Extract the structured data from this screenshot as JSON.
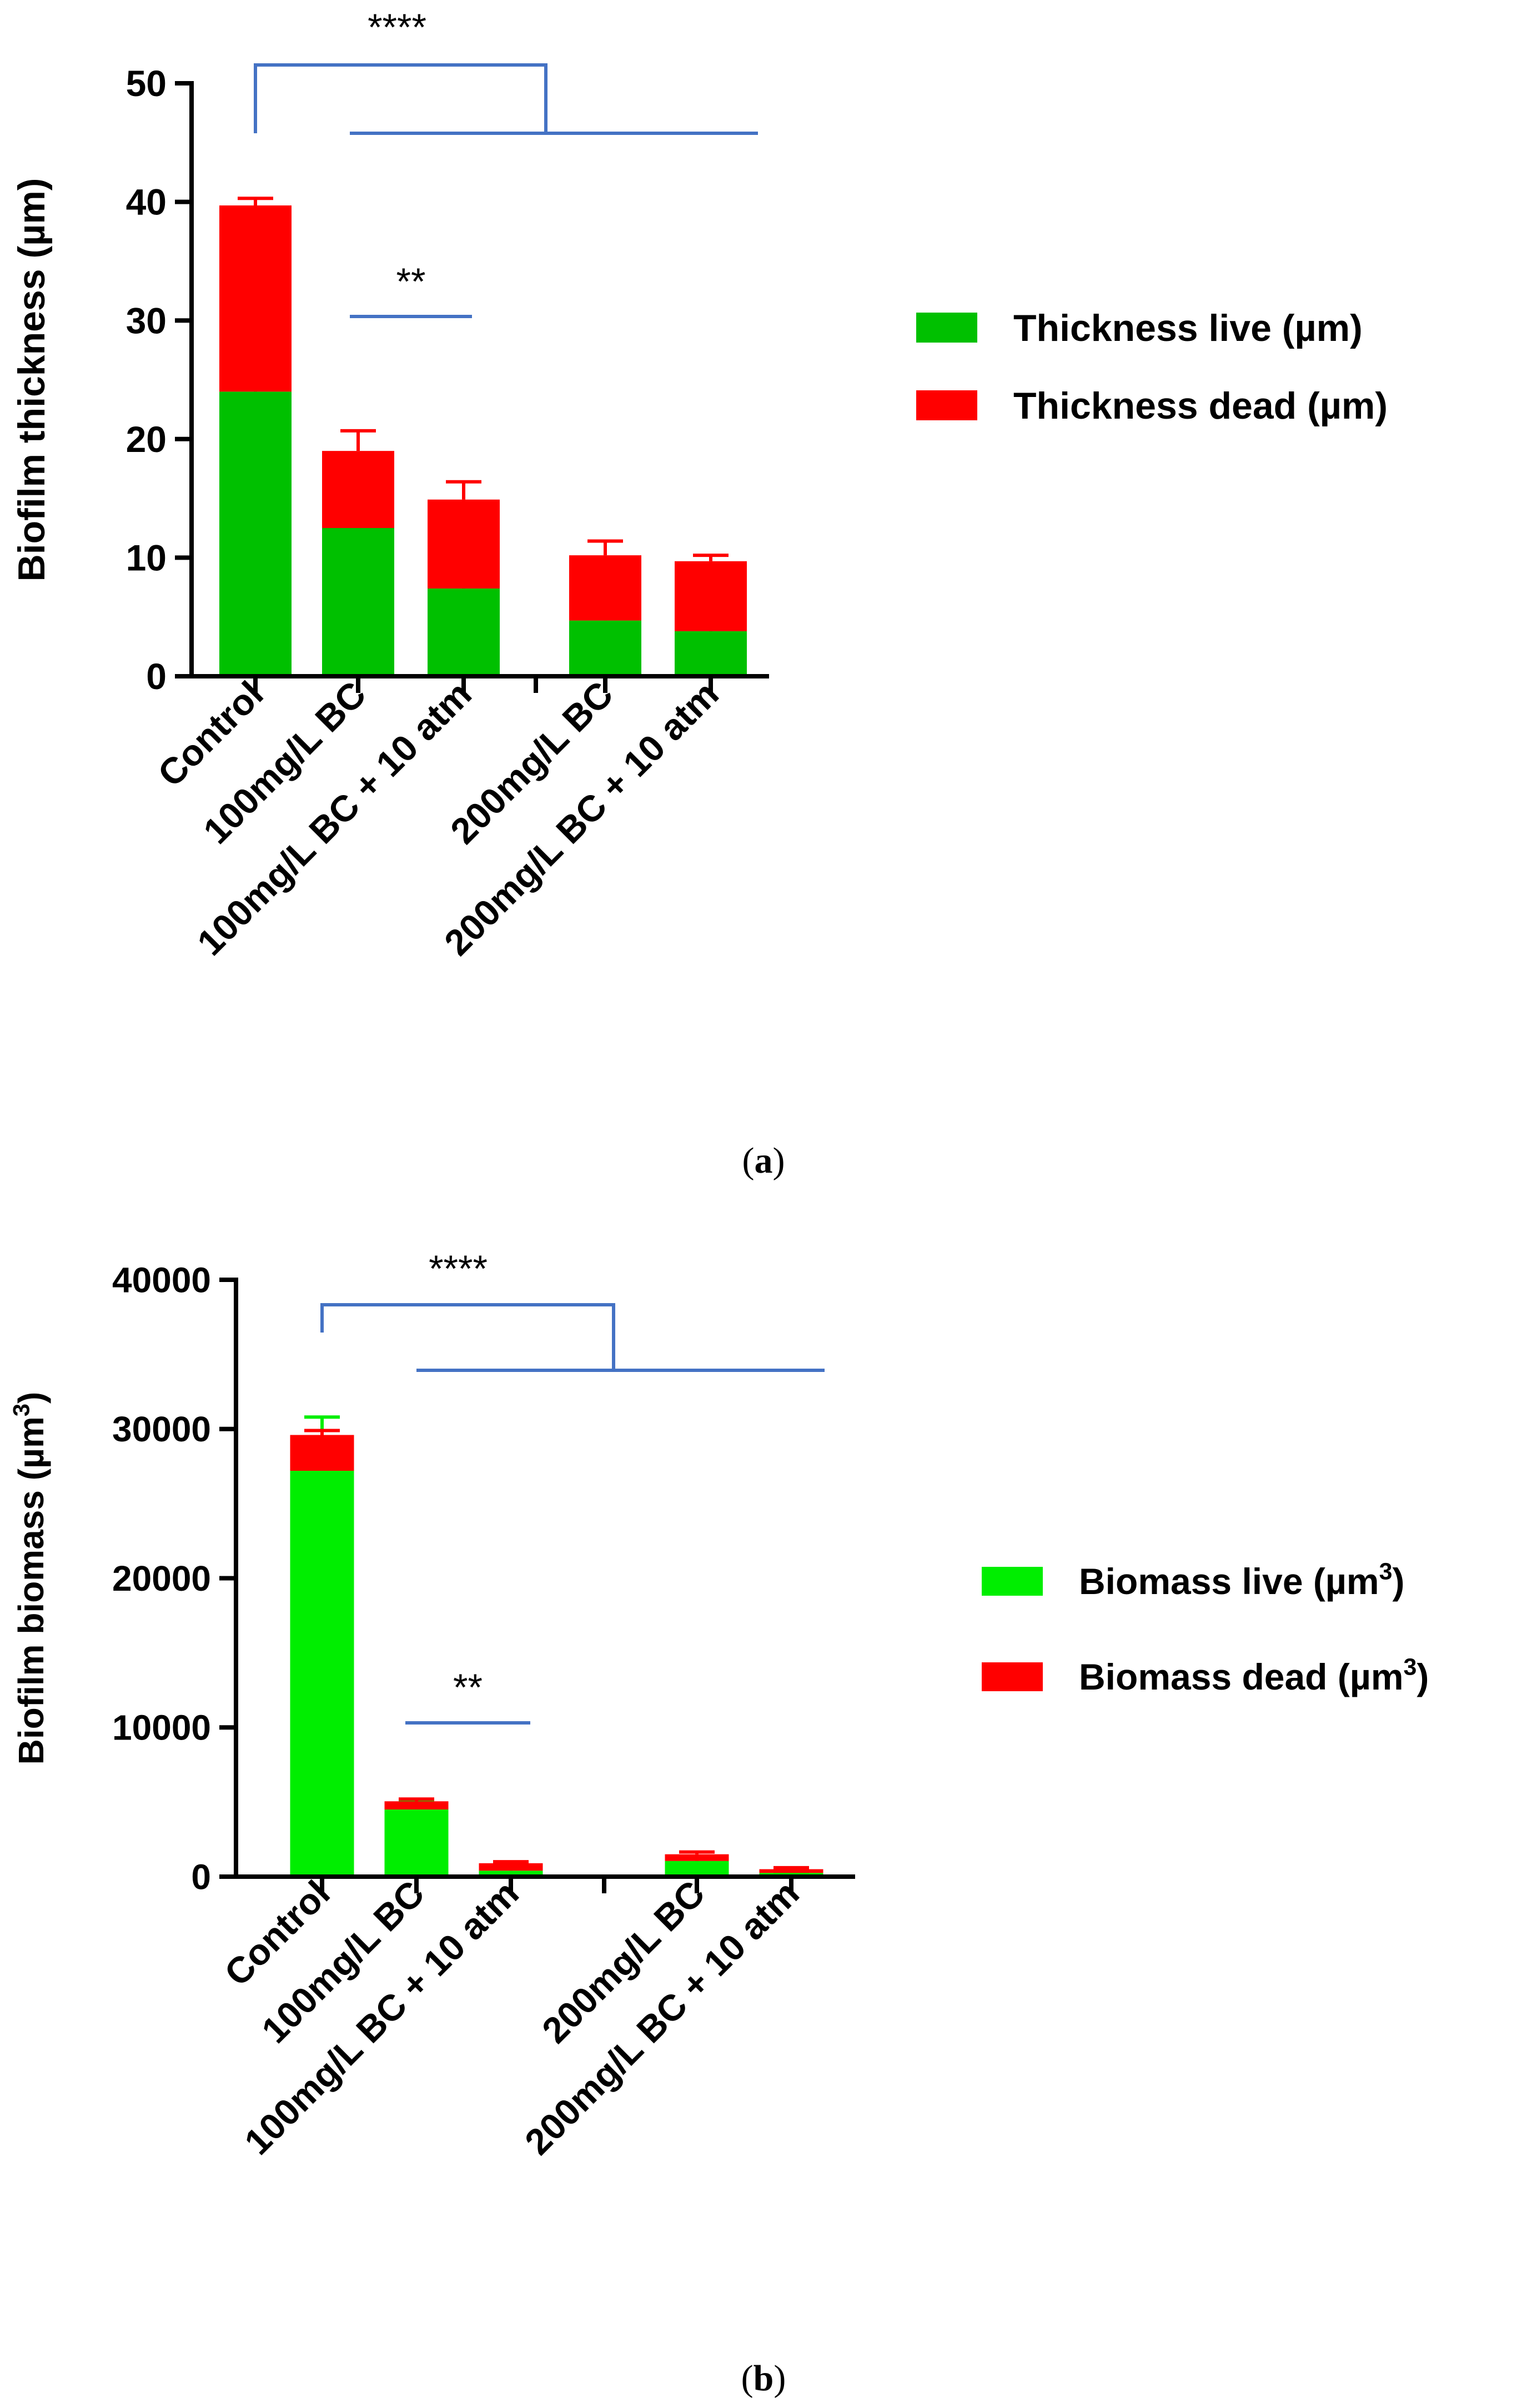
{
  "chart_data": [
    {
      "panel": "(a)",
      "panel_letter": "a",
      "type": "bar",
      "stacked": true,
      "ylabel": "Biofilm thickness (µm)",
      "ylim": [
        0,
        50
      ],
      "yticks": [
        "0",
        "10",
        "20",
        "30",
        "40",
        "50"
      ],
      "categories": [
        "Control",
        "100mg/L BC",
        "100mg/L BC + 10 atm",
        "200mg/L BC",
        "200mg/L BC + 10 atm"
      ],
      "series": [
        {
          "name": "Thickness live (µm)",
          "color": "#00c000",
          "values": [
            24,
            12.5,
            7.4,
            4.7,
            3.8
          ],
          "errors": [
            2.7,
            3.5,
            1.0,
            1.0,
            0.6
          ]
        },
        {
          "name": "Thickness dead (µm)",
          "color": "#ff0000",
          "values": [
            15.7,
            6.5,
            7.5,
            5.5,
            5.9
          ],
          "errors": [
            0.6,
            1.7,
            1.5,
            1.2,
            0.5
          ]
        }
      ],
      "significance": [
        {
          "label": "****",
          "from": "Control",
          "to": [
            "100mg/L BC",
            "100mg/L BC + 10 atm",
            "200mg/L BC",
            "200mg/L BC + 10 atm"
          ]
        },
        {
          "label": "**",
          "from": "100mg/L BC",
          "to": [
            "100mg/L BC + 10 atm"
          ]
        }
      ],
      "bracket_color": "#4472c4"
    },
    {
      "panel": "(b)",
      "panel_letter": "b",
      "type": "bar",
      "stacked": true,
      "ylabel": "Biofilm biomass (µm",
      "ylabel_sup": "3",
      "ylabel_close": ")",
      "ylim": [
        0,
        40000
      ],
      "yticks": [
        "0",
        "10000",
        "20000",
        "30000",
        "40000"
      ],
      "categories": [
        "Control",
        "100mg/L BC",
        "100mg/L BC + 10 atm",
        "200mg/L BC",
        "200mg/L BC + 10 atm"
      ],
      "series": [
        {
          "name": "Biomass live (µm",
          "sup": "3",
          "close": ")",
          "color": "#00ee00",
          "values": [
            27200,
            4500,
            400,
            1050,
            250
          ],
          "errors": [
            3600,
            600,
            250,
            300,
            100
          ]
        },
        {
          "name": "Biomass dead (µm",
          "sup": "3",
          "close": ")",
          "color": "#ff0000",
          "values": [
            2400,
            550,
            500,
            450,
            250
          ],
          "errors": [
            300,
            150,
            100,
            150,
            100
          ]
        }
      ],
      "significance": [
        {
          "label": "****",
          "from": "Control",
          "to": [
            "100mg/L BC",
            "100mg/L BC + 10 atm",
            "200mg/L BC",
            "200mg/L BC + 10 atm"
          ]
        },
        {
          "label": "**",
          "from": "100mg/L BC",
          "to": [
            "100mg/L BC + 10 atm"
          ]
        }
      ],
      "bracket_color": "#4472c4"
    }
  ]
}
